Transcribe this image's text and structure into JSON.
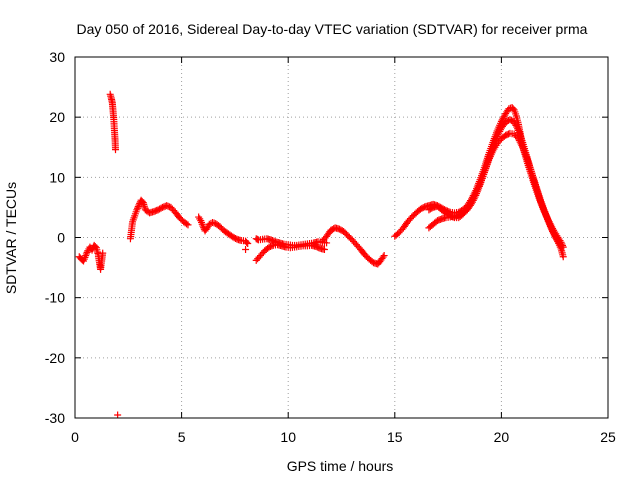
{
  "chart_data": {
    "type": "scatter",
    "title": "Day 050 of 2016, Sidereal Day-to-day VTEC variation (SDTVAR) for receiver prma",
    "xlabel": "GPS time / hours",
    "ylabel": "SDTVAR / TECUs",
    "xlim": [
      0,
      25
    ],
    "ylim": [
      -30,
      30
    ],
    "xticks": [
      0,
      5,
      10,
      15,
      20,
      25
    ],
    "yticks": [
      -30,
      -20,
      -10,
      0,
      10,
      20,
      30
    ],
    "grid": true,
    "marker": "plus",
    "color": "#ff0000",
    "series": [
      {
        "name": "SDTVAR",
        "segments": [
          [
            [
              0.2,
              -3.2
            ],
            [
              0.3,
              -3.6
            ],
            [
              0.4,
              -3.9
            ],
            [
              0.5,
              -3.0
            ],
            [
              0.6,
              -2.2
            ],
            [
              0.7,
              -1.6
            ],
            [
              0.8,
              -2.1
            ],
            [
              0.9,
              -1.3
            ],
            [
              1.0,
              -1.7
            ],
            [
              1.05,
              -2.4
            ],
            [
              1.1,
              -2.9
            ]
          ],
          [
            [
              1.1,
              -3.2
            ],
            [
              1.15,
              -4.2
            ],
            [
              1.2,
              -5.3
            ],
            [
              1.25,
              -3.9
            ],
            [
              1.3,
              -2.6
            ]
          ],
          [
            [
              1.65,
              23.8
            ],
            [
              1.7,
              23.2
            ],
            [
              1.75,
              22.4
            ],
            [
              1.78,
              21.2
            ],
            [
              1.82,
              19.6
            ],
            [
              1.85,
              17.8
            ],
            [
              1.88,
              16.2
            ],
            [
              1.9,
              14.6
            ]
          ],
          [
            [
              2.0,
              -29.5
            ]
          ],
          [
            [
              2.6,
              -0.2
            ],
            [
              2.65,
              1.2
            ],
            [
              2.7,
              2.6
            ],
            [
              2.8,
              3.6
            ],
            [
              2.9,
              4.6
            ],
            [
              3.0,
              5.4
            ],
            [
              3.1,
              6.2
            ],
            [
              3.2,
              5.8
            ],
            [
              3.3,
              4.6
            ],
            [
              3.5,
              4.1
            ],
            [
              3.7,
              4.3
            ],
            [
              3.9,
              4.6
            ],
            [
              4.1,
              5.0
            ],
            [
              4.3,
              5.3
            ],
            [
              4.5,
              5.0
            ],
            [
              4.7,
              4.2
            ],
            [
              4.9,
              3.3
            ],
            [
              5.1,
              2.6
            ],
            [
              5.3,
              2.1
            ]
          ],
          [
            [
              5.8,
              3.4
            ],
            [
              5.9,
              2.8
            ],
            [
              6.0,
              1.9
            ],
            [
              6.1,
              1.1
            ],
            [
              6.2,
              1.6
            ],
            [
              6.3,
              2.2
            ],
            [
              6.45,
              2.5
            ],
            [
              6.6,
              2.3
            ],
            [
              6.8,
              1.8
            ],
            [
              7.0,
              1.1
            ],
            [
              7.2,
              0.6
            ],
            [
              7.4,
              0.1
            ],
            [
              7.6,
              -0.3
            ],
            [
              7.8,
              -0.5
            ],
            [
              8.0,
              -0.6
            ],
            [
              8.1,
              -1.0
            ]
          ],
          [
            [
              8.0,
              -2.0
            ]
          ],
          [
            [
              8.5,
              -0.2
            ],
            [
              8.6,
              -0.4
            ],
            [
              8.8,
              -0.3
            ],
            [
              9.0,
              -0.2
            ],
            [
              9.2,
              -0.4
            ],
            [
              9.4,
              -0.7
            ],
            [
              9.6,
              -0.9
            ],
            [
              9.8,
              -1.1
            ],
            [
              10.0,
              -1.2
            ],
            [
              10.2,
              -1.3
            ],
            [
              10.4,
              -1.3
            ],
            [
              10.6,
              -1.2
            ],
            [
              10.8,
              -1.1
            ],
            [
              11.0,
              -1.0
            ],
            [
              11.2,
              -0.9
            ],
            [
              11.4,
              -0.7
            ],
            [
              11.6,
              -0.8
            ],
            [
              11.8,
              -0.9
            ]
          ],
          [
            [
              8.5,
              -3.8
            ],
            [
              8.7,
              -3.0
            ],
            [
              8.9,
              -2.2
            ],
            [
              9.1,
              -1.6
            ],
            [
              9.3,
              -1.3
            ],
            [
              9.5,
              -1.2
            ],
            [
              9.7,
              -1.4
            ],
            [
              9.9,
              -1.6
            ],
            [
              10.1,
              -1.7
            ],
            [
              10.3,
              -1.6
            ],
            [
              10.5,
              -1.5
            ],
            [
              10.7,
              -1.4
            ],
            [
              10.9,
              -1.4
            ],
            [
              11.1,
              -1.3
            ],
            [
              11.3,
              -1.5
            ],
            [
              11.5,
              -1.8
            ],
            [
              11.7,
              -2.0
            ]
          ],
          [
            [
              11.6,
              -0.6
            ],
            [
              11.8,
              0.2
            ],
            [
              12.0,
              1.2
            ],
            [
              12.2,
              1.6
            ],
            [
              12.4,
              1.4
            ],
            [
              12.6,
              1.0
            ],
            [
              12.8,
              0.3
            ],
            [
              13.0,
              -0.4
            ],
            [
              13.2,
              -1.2
            ],
            [
              13.4,
              -2.0
            ],
            [
              13.6,
              -2.9
            ],
            [
              13.8,
              -3.6
            ],
            [
              14.0,
              -4.2
            ],
            [
              14.2,
              -4.4
            ],
            [
              14.3,
              -4.0
            ],
            [
              14.4,
              -3.5
            ],
            [
              14.5,
              -3.0
            ]
          ],
          [
            [
              15.0,
              0.2
            ],
            [
              15.2,
              0.8
            ],
            [
              15.4,
              1.6
            ],
            [
              15.6,
              2.6
            ],
            [
              15.8,
              3.4
            ],
            [
              16.0,
              4.1
            ],
            [
              16.2,
              4.7
            ],
            [
              16.4,
              5.1
            ],
            [
              16.6,
              5.3
            ],
            [
              16.8,
              5.5
            ],
            [
              17.0,
              5.3
            ],
            [
              17.2,
              4.9
            ],
            [
              17.4,
              4.5
            ],
            [
              17.6,
              4.2
            ],
            [
              17.8,
              4.1
            ],
            [
              18.0,
              4.2
            ],
            [
              18.2,
              4.6
            ],
            [
              18.4,
              5.3
            ],
            [
              18.6,
              6.4
            ],
            [
              18.8,
              7.8
            ],
            [
              19.0,
              9.6
            ],
            [
              19.2,
              11.6
            ],
            [
              19.4,
              13.8
            ],
            [
              19.6,
              15.8
            ],
            [
              19.8,
              17.7
            ],
            [
              20.0,
              19.3
            ],
            [
              20.2,
              20.6
            ],
            [
              20.35,
              21.4
            ],
            [
              20.5,
              21.6
            ],
            [
              20.6,
              21.2
            ],
            [
              20.7,
              20.2
            ],
            [
              20.8,
              18.8
            ],
            [
              20.9,
              17.0
            ],
            [
              21.0,
              15.1
            ],
            [
              21.2,
              12.6
            ],
            [
              21.4,
              10.4
            ],
            [
              21.6,
              8.2
            ],
            [
              21.8,
              6.2
            ],
            [
              22.0,
              4.4
            ],
            [
              22.2,
              2.9
            ],
            [
              22.4,
              1.5
            ],
            [
              22.6,
              0.3
            ],
            [
              22.8,
              -0.8
            ],
            [
              22.9,
              -1.6
            ]
          ],
          [
            [
              16.6,
              1.6
            ],
            [
              16.8,
              2.2
            ],
            [
              17.0,
              2.8
            ],
            [
              17.2,
              3.1
            ],
            [
              17.4,
              3.3
            ],
            [
              17.6,
              3.4
            ],
            [
              17.8,
              3.5
            ],
            [
              18.0,
              3.7
            ],
            [
              18.2,
              4.0
            ],
            [
              18.4,
              4.6
            ],
            [
              18.6,
              5.6
            ],
            [
              18.8,
              7.0
            ],
            [
              19.0,
              8.8
            ],
            [
              19.2,
              10.8
            ],
            [
              19.4,
              12.8
            ],
            [
              19.6,
              14.4
            ],
            [
              19.8,
              15.6
            ],
            [
              20.0,
              16.4
            ],
            [
              20.2,
              17.0
            ],
            [
              20.4,
              17.3
            ],
            [
              20.6,
              17.2
            ],
            [
              20.8,
              16.4
            ],
            [
              21.0,
              15.0
            ],
            [
              21.2,
              13.2
            ],
            [
              21.4,
              11.0
            ],
            [
              21.6,
              8.8
            ],
            [
              21.8,
              6.6
            ],
            [
              22.0,
              4.6
            ],
            [
              22.2,
              2.8
            ],
            [
              22.4,
              1.1
            ],
            [
              22.6,
              -0.3
            ],
            [
              22.8,
              -1.9
            ],
            [
              22.9,
              -3.2
            ]
          ],
          [
            [
              16.6,
              4.6
            ],
            [
              16.8,
              5.0
            ],
            [
              17.0,
              5.2
            ],
            [
              17.2,
              4.6
            ],
            [
              17.4,
              4.0
            ],
            [
              17.6,
              3.6
            ],
            [
              17.8,
              3.3
            ],
            [
              18.0,
              3.3
            ],
            [
              18.2,
              3.9
            ],
            [
              18.4,
              4.8
            ],
            [
              18.6,
              5.9
            ],
            [
              18.8,
              7.3
            ],
            [
              19.0,
              8.9
            ],
            [
              19.2,
              10.8
            ],
            [
              19.4,
              13.0
            ],
            [
              19.6,
              15.0
            ],
            [
              19.8,
              16.8
            ],
            [
              20.0,
              18.2
            ],
            [
              20.2,
              19.2
            ],
            [
              20.4,
              19.6
            ],
            [
              20.6,
              19.2
            ],
            [
              20.8,
              17.8
            ],
            [
              21.0,
              15.8
            ],
            [
              21.2,
              13.4
            ],
            [
              21.4,
              11.0
            ],
            [
              21.6,
              8.6
            ],
            [
              21.8,
              6.4
            ],
            [
              22.0,
              4.5
            ],
            [
              22.2,
              2.7
            ],
            [
              22.4,
              1.0
            ],
            [
              22.6,
              -0.4
            ],
            [
              22.8,
              -1.6
            ]
          ]
        ]
      }
    ]
  }
}
